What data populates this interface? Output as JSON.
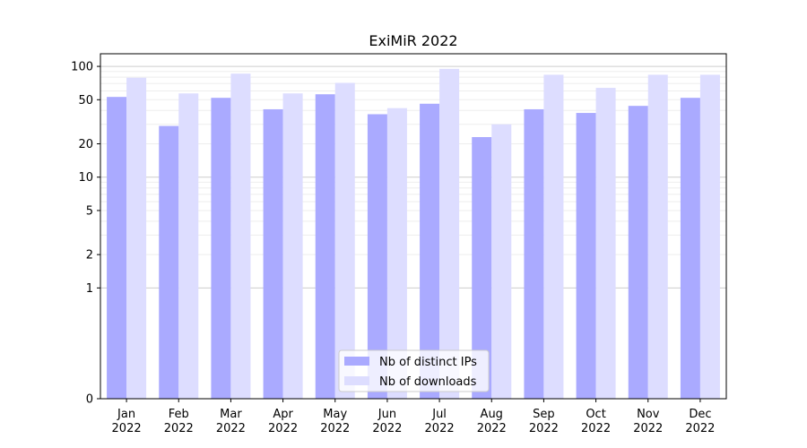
{
  "chart_data": {
    "type": "bar",
    "title": "ExiMiR 2022",
    "xlabel": "",
    "ylabel": "",
    "yscale": "symlog",
    "ylim": [
      0,
      130
    ],
    "yticks": [
      "0",
      "1",
      "2",
      "5",
      "10",
      "20",
      "50",
      "100"
    ],
    "grid": true,
    "legend_position": "bottom-center",
    "categories": [
      {
        "month": "Jan",
        "year": "2022"
      },
      {
        "month": "Feb",
        "year": "2022"
      },
      {
        "month": "Mar",
        "year": "2022"
      },
      {
        "month": "Apr",
        "year": "2022"
      },
      {
        "month": "May",
        "year": "2022"
      },
      {
        "month": "Jun",
        "year": "2022"
      },
      {
        "month": "Jul",
        "year": "2022"
      },
      {
        "month": "Aug",
        "year": "2022"
      },
      {
        "month": "Sep",
        "year": "2022"
      },
      {
        "month": "Oct",
        "year": "2022"
      },
      {
        "month": "Nov",
        "year": "2022"
      },
      {
        "month": "Dec",
        "year": "2022"
      }
    ],
    "series": [
      {
        "name": "Nb of distinct IPs",
        "color": "#aaaaff",
        "values": [
          53,
          29,
          52,
          41,
          56,
          37,
          46,
          23,
          41,
          38,
          44,
          52
        ]
      },
      {
        "name": "Nb of downloads",
        "color": "#ddddff",
        "values": [
          79,
          57,
          86,
          57,
          71,
          42,
          95,
          30,
          84,
          64,
          84,
          84
        ]
      }
    ]
  }
}
